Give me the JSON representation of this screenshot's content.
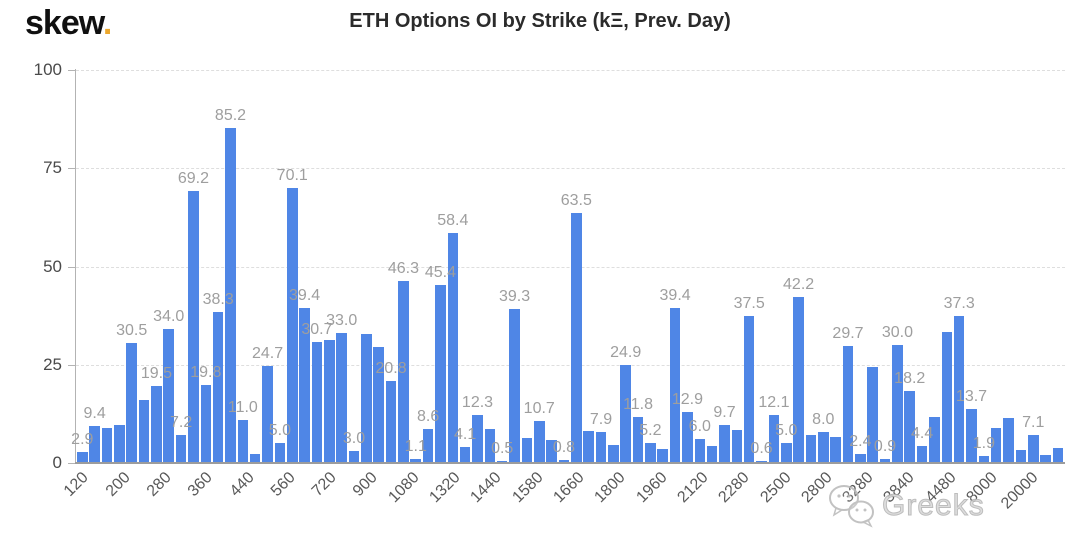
{
  "logo": {
    "text": "skew",
    "dot": "."
  },
  "header": {
    "title": "ETH Options OI by Strike (kΞ, Prev. Day)"
  },
  "watermark": {
    "icon": "wechat-chat-bubbles-icon",
    "text": "Greeks"
  },
  "colors": {
    "bar": "#4f86e6",
    "value_label": "#9e9e9e",
    "axis_text": "#595959",
    "grid": "#dedede",
    "axis_line": "#b3b3b3",
    "baseline": "#9c9c9c",
    "title": "#2b2b2b",
    "logo_dot": "#eca72c",
    "watermark": "#b0b0b0"
  },
  "chart_data": {
    "type": "bar",
    "title": "ETH Options OI by Strike (kΞ, Prev. Day)",
    "unit": "kΞ",
    "ylabel": "",
    "xlabel": "",
    "ylim": [
      0,
      100
    ],
    "yticks": [
      0,
      25,
      50,
      75,
      100
    ],
    "grid": "horizontal-dashed",
    "legend": "none",
    "x_tick_labels": [
      "120",
      "200",
      "280",
      "360",
      "440",
      "560",
      "720",
      "900",
      "1080",
      "1320",
      "1440",
      "1580",
      "1660",
      "1800",
      "1960",
      "2120",
      "2280",
      "2500",
      "2800",
      "3280",
      "3840",
      "4480",
      "8000",
      "20000"
    ],
    "bars": [
      {
        "value": 2.9,
        "label": "2.9"
      },
      {
        "value": 9.4,
        "label": "9.4"
      },
      {
        "value": 8.9,
        "label": null
      },
      {
        "value": 9.7,
        "label": null
      },
      {
        "value": 30.5,
        "label": "30.5"
      },
      {
        "value": 16.0,
        "label": null
      },
      {
        "value": 19.5,
        "label": "19.5"
      },
      {
        "value": 34.0,
        "label": "34.0"
      },
      {
        "value": 7.2,
        "label": "7.2"
      },
      {
        "value": 69.2,
        "label": "69.2"
      },
      {
        "value": 19.8,
        "label": "19.8"
      },
      {
        "value": 38.3,
        "label": "38.3"
      },
      {
        "value": 85.2,
        "label": "85.2"
      },
      {
        "value": 11.0,
        "label": "11.0"
      },
      {
        "value": 2.2,
        "label": null
      },
      {
        "value": 24.7,
        "label": "24.7"
      },
      {
        "value": 5.0,
        "label": "5.0"
      },
      {
        "value": 70.1,
        "label": "70.1"
      },
      {
        "value": 39.4,
        "label": "39.4"
      },
      {
        "value": 30.7,
        "label": "30.7"
      },
      {
        "value": 31.2,
        "label": null
      },
      {
        "value": 33.0,
        "label": "33.0"
      },
      {
        "value": 3.0,
        "label": "3.0"
      },
      {
        "value": 32.8,
        "label": null
      },
      {
        "value": 29.6,
        "label": null
      },
      {
        "value": 20.8,
        "label": "20.8"
      },
      {
        "value": 46.3,
        "label": "46.3"
      },
      {
        "value": 1.1,
        "label": "1.1"
      },
      {
        "value": 8.6,
        "label": "8.6"
      },
      {
        "value": 45.4,
        "label": "45.4"
      },
      {
        "value": 58.4,
        "label": "58.4"
      },
      {
        "value": 4.1,
        "label": "4.1"
      },
      {
        "value": 12.3,
        "label": "12.3"
      },
      {
        "value": 8.7,
        "label": null
      },
      {
        "value": 0.5,
        "label": "0.5"
      },
      {
        "value": 39.3,
        "label": "39.3"
      },
      {
        "value": 6.3,
        "label": null
      },
      {
        "value": 10.7,
        "label": "10.7"
      },
      {
        "value": 5.9,
        "label": null
      },
      {
        "value": 0.8,
        "label": "0.8"
      },
      {
        "value": 63.5,
        "label": "63.5"
      },
      {
        "value": 8.1,
        "label": null
      },
      {
        "value": 7.9,
        "label": "7.9"
      },
      {
        "value": 4.5,
        "label": null
      },
      {
        "value": 24.9,
        "label": "24.9"
      },
      {
        "value": 11.8,
        "label": "11.8"
      },
      {
        "value": 5.2,
        "label": "5.2"
      },
      {
        "value": 3.5,
        "label": null
      },
      {
        "value": 39.4,
        "label": "39.4"
      },
      {
        "value": 12.9,
        "label": "12.9"
      },
      {
        "value": 6.0,
        "label": "6.0"
      },
      {
        "value": 4.4,
        "label": null
      },
      {
        "value": 9.7,
        "label": "9.7"
      },
      {
        "value": 8.5,
        "label": null
      },
      {
        "value": 37.5,
        "label": "37.5"
      },
      {
        "value": 0.6,
        "label": "0.6"
      },
      {
        "value": 12.1,
        "label": "12.1"
      },
      {
        "value": 5.0,
        "label": "5.0"
      },
      {
        "value": 42.2,
        "label": "42.2"
      },
      {
        "value": 7.1,
        "label": null
      },
      {
        "value": 8.0,
        "label": "8.0"
      },
      {
        "value": 6.6,
        "label": null
      },
      {
        "value": 29.7,
        "label": "29.7"
      },
      {
        "value": 2.4,
        "label": "2.4"
      },
      {
        "value": 24.5,
        "label": null
      },
      {
        "value": 0.9,
        "label": "0.9"
      },
      {
        "value": 30.0,
        "label": "30.0"
      },
      {
        "value": 18.2,
        "label": "18.2"
      },
      {
        "value": 4.4,
        "label": "4.4"
      },
      {
        "value": 11.8,
        "label": null
      },
      {
        "value": 33.3,
        "label": null
      },
      {
        "value": 37.3,
        "label": "37.3"
      },
      {
        "value": 13.7,
        "label": "13.7"
      },
      {
        "value": 1.9,
        "label": "1.9"
      },
      {
        "value": 8.9,
        "label": null
      },
      {
        "value": 11.4,
        "label": null
      },
      {
        "value": 3.2,
        "label": null
      },
      {
        "value": 7.1,
        "label": "7.1"
      },
      {
        "value": 2.0,
        "label": null
      },
      {
        "value": 3.9,
        "label": null
      }
    ]
  }
}
